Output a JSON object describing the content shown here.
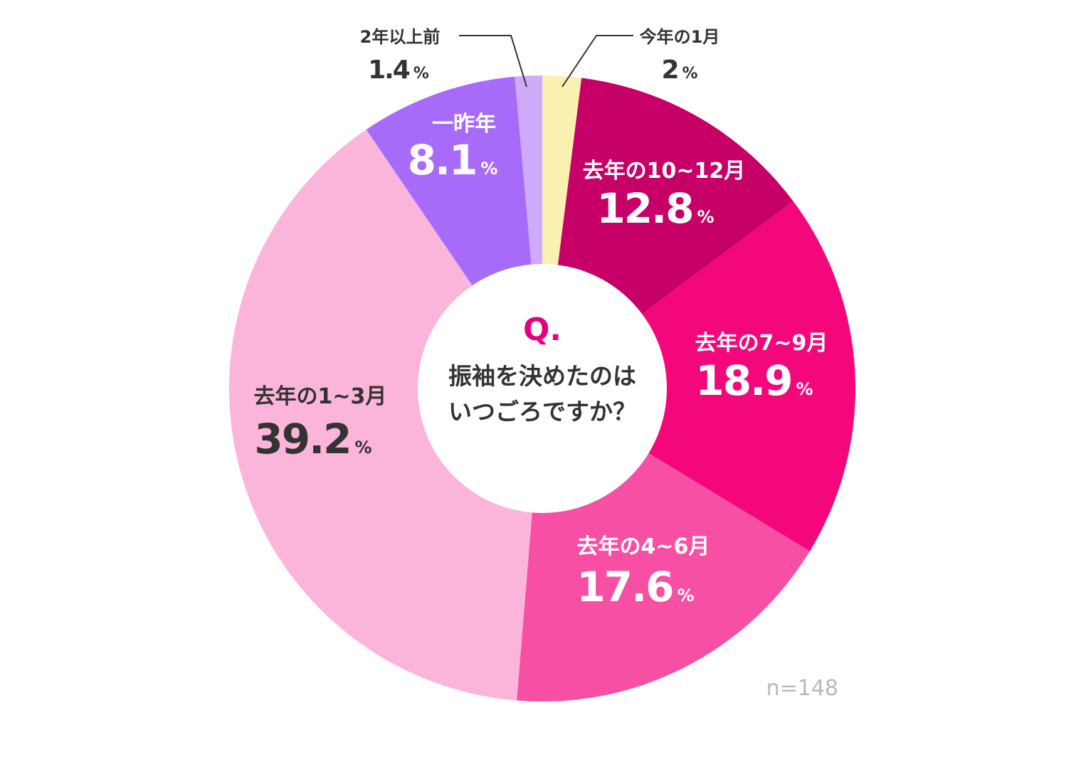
{
  "chart_data": {
    "type": "pie",
    "variant": "donut",
    "question_mark": "Q.",
    "question_lines": [
      "振袖を決めたのは",
      "いつごろですか？"
    ],
    "sample_size": "n=148",
    "percent_symbol": "%",
    "slices": [
      {
        "label": "今年の1月",
        "value": 2,
        "value_text": "2",
        "color": "#f9f0b2",
        "label_color": "#333333",
        "outside": true
      },
      {
        "label": "去年の10~12月",
        "value": 12.8,
        "value_text": "12.8",
        "color": "#c60066",
        "label_color": "#ffffff",
        "outside": false
      },
      {
        "label": "去年の7~9月",
        "value": 18.9,
        "value_text": "18.9",
        "color": "#f3077a",
        "label_color": "#ffffff",
        "outside": false
      },
      {
        "label": "去年の4~6月",
        "value": 17.6,
        "value_text": "17.6",
        "color": "#f64fa3",
        "label_color": "#ffffff",
        "outside": false
      },
      {
        "label": "去年の1~3月",
        "value": 39.2,
        "value_text": "39.2",
        "color": "#fbb5da",
        "label_color": "#333333",
        "outside": false
      },
      {
        "label": "一昨年",
        "value": 8.1,
        "value_text": "8.1",
        "color": "#a76bfa",
        "label_color": "#ffffff",
        "outside": false
      },
      {
        "label": "2年以上前",
        "value": 1.4,
        "value_text": "1.4",
        "color": "#cfaafb",
        "label_color": "#333333",
        "outside": true
      }
    ],
    "colors": {
      "question_accent": "#e6007e",
      "text_dark": "#333333",
      "sample_size_text": "#b8b8b8",
      "leader_line": "#333333"
    }
  }
}
